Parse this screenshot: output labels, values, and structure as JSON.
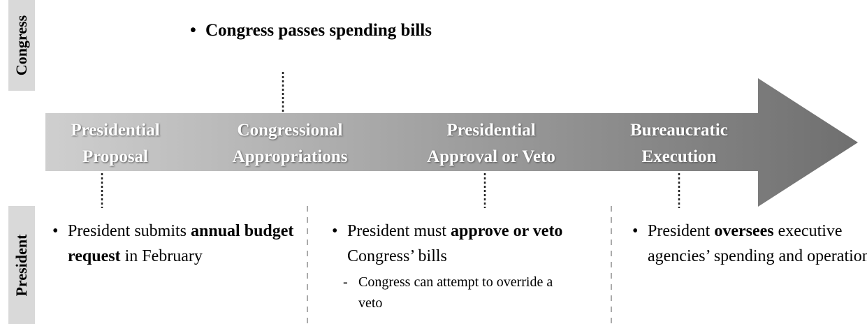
{
  "side_labels": {
    "congress": "Congress",
    "president": "President"
  },
  "congress_note": "Congress passes spending bills",
  "stages": [
    {
      "lines": [
        "Presidential",
        "Proposal"
      ]
    },
    {
      "lines": [
        "Congressional",
        "Appropriations"
      ]
    },
    {
      "lines": [
        "Presidential",
        "Approval or Veto"
      ]
    },
    {
      "lines": [
        "Bureaucratic",
        "Execution"
      ]
    }
  ],
  "president_notes": [
    {
      "runs": [
        {
          "text": "President submits ",
          "bold": false
        },
        {
          "text": "annual budget request",
          "bold": true
        },
        {
          "text": " in February",
          "bold": false
        }
      ]
    },
    {
      "runs": [
        {
          "text": "President must ",
          "bold": false
        },
        {
          "text": "approve or veto",
          "bold": true
        },
        {
          "text": " Congress’ bills",
          "bold": false
        }
      ],
      "sub_note": "Congress can attempt to override a veto"
    },
    {
      "runs": [
        {
          "text": "President ",
          "bold": false
        },
        {
          "text": "oversees",
          "bold": true
        },
        {
          "text": " executive agencies’ spending and operations",
          "bold": false
        }
      ]
    }
  ]
}
